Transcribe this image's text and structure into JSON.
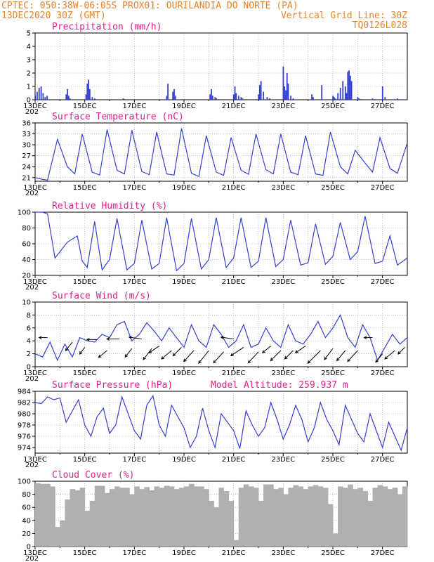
{
  "header": {
    "line1_left": "CPTEC:  050:38W-06:05S  PROX01: OURILANDIA DO NORTE (PA)",
    "line2_left": "13DEC2020 30Z (GMT)",
    "line2_right": "Vertical Grid Line: 30Z",
    "line3_right": "TQ0126L028"
  },
  "colors": {
    "header": "#e8832a",
    "title": "#e0208a",
    "line": "#3340d0",
    "cloud": "#b0b0b0",
    "grid": "#999999"
  },
  "x_axis": {
    "labels": [
      "13DEC",
      "15DEC",
      "17DEC",
      "19DEC",
      "21DEC",
      "23DEC",
      "25DEC",
      "27DEC"
    ],
    "label_days": [
      0,
      2,
      4,
      6,
      8,
      10,
      12,
      14
    ],
    "range_days": [
      0,
      15
    ],
    "stub": "202"
  },
  "chart_data": [
    {
      "type": "bar",
      "title": "Precipitation (mm/h)",
      "ylim": [
        0,
        5
      ],
      "yticks": [
        0,
        1,
        2,
        3,
        4,
        5
      ],
      "x_days": [
        0.0,
        0.08,
        0.16,
        0.24,
        0.32,
        0.4,
        0.48,
        1.25,
        1.3,
        1.35,
        1.4,
        2.05,
        2.1,
        2.15,
        2.2,
        2.3,
        2.4,
        3.55,
        3.6,
        5.3,
        5.35,
        5.55,
        5.6,
        5.65,
        7.05,
        7.1,
        7.15,
        7.25,
        7.3,
        7.4,
        8.0,
        8.05,
        8.1,
        8.2,
        8.3,
        8.35,
        9.0,
        9.05,
        9.1,
        9.2,
        9.35,
        9.45,
        10.0,
        10.05,
        10.1,
        10.15,
        10.2,
        10.3,
        10.4,
        11.15,
        11.2,
        11.55,
        12.0,
        12.05,
        12.1,
        12.2,
        12.3,
        12.4,
        12.5,
        12.55,
        12.6,
        12.65,
        12.7,
        12.75,
        13.0,
        13.05,
        13.15,
        13.6,
        13.7,
        14.0,
        14.1,
        14.5,
        14.6
      ],
      "values": [
        0.3,
        0.6,
        0.9,
        1.0,
        0.5,
        0.2,
        0.3,
        0.4,
        0.8,
        0.3,
        0.1,
        0.4,
        1.2,
        1.5,
        0.8,
        0.2,
        0.1,
        0.1,
        0.05,
        0.3,
        1.2,
        0.6,
        0.8,
        0.3,
        0.4,
        0.8,
        0.3,
        0.2,
        0.1,
        0.05,
        0.4,
        1.0,
        0.5,
        0.3,
        0.2,
        0.1,
        0.4,
        1.1,
        1.4,
        0.6,
        0.2,
        0.1,
        2.5,
        1.0,
        0.7,
        2.0,
        1.2,
        0.3,
        0.1,
        0.4,
        0.2,
        1.1,
        0.3,
        0.2,
        0.1,
        0.5,
        0.9,
        1.4,
        1.0,
        0.5,
        2.1,
        2.2,
        1.8,
        1.4,
        0.2,
        0.1,
        0.05,
        0.1,
        0.05,
        1.0,
        0.2,
        0.05,
        0.1
      ]
    },
    {
      "type": "line",
      "title": "Surface Temperature (nC)",
      "ylim": [
        20,
        36
      ],
      "yticks": [
        21,
        24,
        27,
        30,
        33,
        36
      ],
      "x_days": [
        0.0,
        0.3,
        0.5,
        0.9,
        1.3,
        1.6,
        1.9,
        2.3,
        2.6,
        2.9,
        3.3,
        3.6,
        3.9,
        4.3,
        4.6,
        4.9,
        5.3,
        5.6,
        5.9,
        6.3,
        6.6,
        6.9,
        7.3,
        7.6,
        7.9,
        8.3,
        8.6,
        8.9,
        9.3,
        9.6,
        9.9,
        10.3,
        10.6,
        10.9,
        11.3,
        11.6,
        11.9,
        12.3,
        12.6,
        12.9,
        13.3,
        13.6,
        13.9,
        14.3,
        14.6,
        15.0
      ],
      "values": [
        21.0,
        20.5,
        20.3,
        31.5,
        24.0,
        22.0,
        33.0,
        22.5,
        21.7,
        34.2,
        23.0,
        22.0,
        34.0,
        22.7,
        21.8,
        33.5,
        22.0,
        21.7,
        34.5,
        22.2,
        21.3,
        32.5,
        22.5,
        21.6,
        32.0,
        23.0,
        21.9,
        33.0,
        23.2,
        22.0,
        33.0,
        22.5,
        21.8,
        32.5,
        22.0,
        21.6,
        33.5,
        24.0,
        22.0,
        28.5,
        25.0,
        22.5,
        32.0,
        23.5,
        22.2,
        30.5
      ]
    },
    {
      "type": "line",
      "title": "Relative Humidity (%)",
      "ylim": [
        20,
        100
      ],
      "yticks": [
        20,
        40,
        60,
        80,
        100
      ],
      "x_days": [
        0.0,
        0.3,
        0.5,
        0.8,
        1.3,
        1.7,
        1.9,
        2.1,
        2.4,
        2.7,
        3.0,
        3.3,
        3.7,
        4.0,
        4.3,
        4.7,
        5.0,
        5.3,
        5.7,
        6.0,
        6.3,
        6.7,
        7.0,
        7.3,
        7.7,
        8.0,
        8.3,
        8.7,
        9.0,
        9.3,
        9.7,
        10.0,
        10.3,
        10.7,
        11.0,
        11.3,
        11.7,
        12.0,
        12.3,
        12.7,
        13.0,
        13.3,
        13.7,
        14.0,
        14.3,
        14.6,
        15.0
      ],
      "values": [
        100.0,
        100.0,
        98.0,
        42.0,
        62.0,
        70.0,
        38.0,
        30.0,
        88.0,
        27.0,
        40.0,
        92.0,
        27.0,
        35.0,
        90.0,
        28.0,
        35.0,
        93.0,
        26.0,
        35.0,
        92.0,
        28.0,
        40.0,
        93.0,
        30.0,
        42.0,
        93.0,
        30.0,
        38.0,
        93.0,
        31.0,
        40.0,
        90.0,
        33.0,
        36.0,
        85.0,
        34.0,
        44.0,
        87.0,
        40.0,
        50.0,
        95.0,
        35.0,
        38.0,
        70.0,
        33.0,
        42.0
      ]
    },
    {
      "type": "line",
      "title": "Surface Wind (m/s)",
      "ylim": [
        0,
        10
      ],
      "yticks": [
        0,
        2,
        4,
        6,
        8,
        10
      ],
      "x_days": [
        0.0,
        0.3,
        0.6,
        0.9,
        1.2,
        1.5,
        1.8,
        2.1,
        2.4,
        2.7,
        3.0,
        3.3,
        3.6,
        3.9,
        4.2,
        4.5,
        4.8,
        5.1,
        5.4,
        5.7,
        6.0,
        6.3,
        6.6,
        6.9,
        7.2,
        7.5,
        7.8,
        8.1,
        8.4,
        8.7,
        9.0,
        9.3,
        9.6,
        9.9,
        10.2,
        10.5,
        10.8,
        11.1,
        11.4,
        11.7,
        12.0,
        12.3,
        12.6,
        12.9,
        13.2,
        13.5,
        13.8,
        14.1,
        14.4,
        14.7,
        15.0
      ],
      "values": [
        2.0,
        1.5,
        3.8,
        1.0,
        3.5,
        1.5,
        4.5,
        4.0,
        3.8,
        5.0,
        4.5,
        6.5,
        7.0,
        4.0,
        5.0,
        6.8,
        5.5,
        4.0,
        6.0,
        4.5,
        3.0,
        6.5,
        4.0,
        3.0,
        6.5,
        5.0,
        3.0,
        4.0,
        6.5,
        3.0,
        3.5,
        6.0,
        4.0,
        3.0,
        6.5,
        4.0,
        3.5,
        5.0,
        7.0,
        4.5,
        6.0,
        8.0,
        4.5,
        3.0,
        6.5,
        4.5,
        1.0,
        3.0,
        5.0,
        3.5,
        4.5
      ],
      "arrows": [
        {
          "day": 0.5,
          "u": -1.0,
          "v": 0.0,
          "y": 4.5
        },
        {
          "day": 1.5,
          "u": -0.8,
          "v": -1.0,
          "y": 3.8
        },
        {
          "day": 2.0,
          "u": -0.6,
          "v": -0.8,
          "y": 3.0
        },
        {
          "day": 2.5,
          "u": -1.2,
          "v": 0.0,
          "y": 4.2
        },
        {
          "day": 2.9,
          "u": -1.0,
          "v": -0.8,
          "y": 2.5
        },
        {
          "day": 3.4,
          "u": -1.5,
          "v": 0.0,
          "y": 4.3
        },
        {
          "day": 3.9,
          "u": -0.8,
          "v": -1.0,
          "y": 2.8
        },
        {
          "day": 4.3,
          "u": -1.5,
          "v": 0.2,
          "y": 4.3
        },
        {
          "day": 4.7,
          "u": -1.0,
          "v": -1.3,
          "y": 2.8
        },
        {
          "day": 5.0,
          "u": -1.2,
          "v": -0.8,
          "y": 3.2
        },
        {
          "day": 5.5,
          "u": -1.2,
          "v": -1.0,
          "y": 2.5
        },
        {
          "day": 5.9,
          "u": -1.0,
          "v": -1.0,
          "y": 3.0
        },
        {
          "day": 6.4,
          "u": -1.2,
          "v": -1.3,
          "y": 2.5
        },
        {
          "day": 7.0,
          "u": -1.2,
          "v": -1.5,
          "y": 2.5
        },
        {
          "day": 7.6,
          "u": -1.2,
          "v": -1.3,
          "y": 2.3
        },
        {
          "day": 8.0,
          "u": -1.5,
          "v": 0.2,
          "y": 4.3
        },
        {
          "day": 8.4,
          "u": -1.5,
          "v": -1.0,
          "y": 3.0
        },
        {
          "day": 9.0,
          "u": -1.2,
          "v": -1.3,
          "y": 2.3
        },
        {
          "day": 9.5,
          "u": -1.0,
          "v": -0.8,
          "y": 3.2
        },
        {
          "day": 9.9,
          "u": -1.2,
          "v": -1.2,
          "y": 2.5
        },
        {
          "day": 10.4,
          "u": -1.0,
          "v": -1.0,
          "y": 2.5
        },
        {
          "day": 10.9,
          "u": -1.2,
          "v": -0.8,
          "y": 3.2
        },
        {
          "day": 11.5,
          "u": -1.5,
          "v": -1.5,
          "y": 2.5
        },
        {
          "day": 12.0,
          "u": -1.0,
          "v": -1.3,
          "y": 2.8
        },
        {
          "day": 12.5,
          "u": -1.0,
          "v": -1.2,
          "y": 2.5
        },
        {
          "day": 13.0,
          "u": -1.2,
          "v": -1.3,
          "y": 2.5
        },
        {
          "day": 13.6,
          "u": -1.0,
          "v": 0.0,
          "y": 4.5
        },
        {
          "day": 14.0,
          "u": -0.8,
          "v": -1.0,
          "y": 2.0
        },
        {
          "day": 14.5,
          "u": -1.2,
          "v": -1.0,
          "y": 2.5
        },
        {
          "day": 14.9,
          "u": -0.8,
          "v": -0.8,
          "y": 3.0
        }
      ]
    },
    {
      "type": "line",
      "title": "Surface Pressure (hPa)",
      "annotation": "Model Altitude: 259.937 m",
      "ylim": [
        973,
        984
      ],
      "yticks": [
        974,
        976,
        978,
        980,
        982,
        984
      ],
      "x_days": [
        0.0,
        0.25,
        0.5,
        0.75,
        1.0,
        1.25,
        1.5,
        1.75,
        2.0,
        2.25,
        2.5,
        2.75,
        3.0,
        3.25,
        3.5,
        3.75,
        4.0,
        4.25,
        4.5,
        4.75,
        5.0,
        5.25,
        5.5,
        5.75,
        6.0,
        6.25,
        6.5,
        6.75,
        7.0,
        7.25,
        7.5,
        7.75,
        8.0,
        8.25,
        8.5,
        8.75,
        9.0,
        9.25,
        9.5,
        9.75,
        10.0,
        10.25,
        10.5,
        10.75,
        11.0,
        11.25,
        11.5,
        11.75,
        12.0,
        12.25,
        12.5,
        12.75,
        13.0,
        13.25,
        13.5,
        13.75,
        14.0,
        14.25,
        14.5,
        14.75,
        15.0
      ],
      "values": [
        982.0,
        981.8,
        983.0,
        982.5,
        982.8,
        978.5,
        980.5,
        982.5,
        978.0,
        976.0,
        979.5,
        981.0,
        976.5,
        978.0,
        983.0,
        980.0,
        977.0,
        975.5,
        981.5,
        983.2,
        978.0,
        976.0,
        981.5,
        979.5,
        977.5,
        974.0,
        976.0,
        981.0,
        977.0,
        974.0,
        980.0,
        978.5,
        977.0,
        973.8,
        980.5,
        978.0,
        976.0,
        977.5,
        982.0,
        979.0,
        975.5,
        978.0,
        981.5,
        979.0,
        975.0,
        977.5,
        982.0,
        979.0,
        977.0,
        974.5,
        981.5,
        979.0,
        976.5,
        975.0,
        980.0,
        977.0,
        974.0,
        978.5,
        976.0,
        973.5,
        977.5
      ]
    },
    {
      "type": "area",
      "title": "Cloud Cover (%)",
      "ylim": [
        0,
        100
      ],
      "yticks": [
        0,
        20,
        40,
        60,
        80,
        100
      ],
      "x_days": [
        0.0,
        0.2,
        0.4,
        0.6,
        0.8,
        1.0,
        1.2,
        1.4,
        1.6,
        1.8,
        2.0,
        2.2,
        2.4,
        2.6,
        2.8,
        3.0,
        3.2,
        3.4,
        3.6,
        3.8,
        4.0,
        4.2,
        4.4,
        4.6,
        4.8,
        5.0,
        5.2,
        5.4,
        5.6,
        5.8,
        6.0,
        6.2,
        6.4,
        6.6,
        6.8,
        7.0,
        7.2,
        7.4,
        7.6,
        7.8,
        8.0,
        8.2,
        8.4,
        8.6,
        8.8,
        9.0,
        9.2,
        9.4,
        9.6,
        9.8,
        10.0,
        10.2,
        10.4,
        10.6,
        10.8,
        11.0,
        11.2,
        11.4,
        11.6,
        11.8,
        12.0,
        12.2,
        12.4,
        12.6,
        12.8,
        13.0,
        13.2,
        13.4,
        13.6,
        13.8,
        14.0,
        14.2,
        14.4,
        14.6,
        14.8
      ],
      "values": [
        97,
        96,
        96,
        92,
        30,
        40,
        72,
        88,
        86,
        90,
        55,
        70,
        93,
        93,
        82,
        88,
        92,
        90,
        90,
        80,
        92,
        88,
        91,
        86,
        92,
        90,
        93,
        92,
        88,
        90,
        92,
        96,
        92,
        92,
        88,
        70,
        60,
        90,
        85,
        70,
        10,
        90,
        95,
        92,
        90,
        70,
        95,
        95,
        88,
        90,
        80,
        90,
        94,
        92,
        88,
        92,
        94,
        92,
        90,
        65,
        20,
        92,
        90,
        95,
        88,
        90,
        85,
        70,
        90,
        94,
        92,
        88,
        90,
        80,
        92
      ]
    }
  ]
}
